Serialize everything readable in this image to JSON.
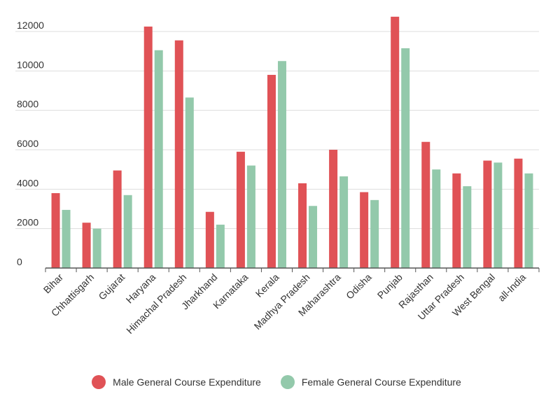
{
  "chart_data": {
    "type": "bar",
    "title": "",
    "xlabel": "",
    "ylabel": "",
    "ylim": [
      0,
      12000
    ],
    "yticks": [
      0,
      2000,
      4000,
      6000,
      8000,
      10000,
      12000
    ],
    "grid": true,
    "legend_position": "bottom-center",
    "categories": [
      "Bihar",
      "Chhattisgarh",
      "Gujarat",
      "Haryana",
      "Himachal Pradesh",
      "Jharkhand",
      "Karnataka",
      "Kerala",
      "Madhya Pradesh",
      "Maharashtra",
      "Odisha",
      "Punjab",
      "Rajasthan",
      "Uttar Pradesh",
      "West Bengal",
      "all-India"
    ],
    "series": [
      {
        "name": "Male General Course Expenditure",
        "color": "#e05256",
        "values": [
          3800,
          2300,
          4950,
          12250,
          11550,
          2850,
          5900,
          9800,
          4300,
          6000,
          3850,
          12750,
          6400,
          4800,
          5450,
          5550
        ]
      },
      {
        "name": "Female General Course Expenditure",
        "color": "#93c9ab",
        "values": [
          2950,
          2000,
          3700,
          11050,
          8650,
          2200,
          5200,
          10500,
          3150,
          4650,
          3450,
          11150,
          5000,
          4150,
          5350,
          4800
        ]
      }
    ]
  }
}
